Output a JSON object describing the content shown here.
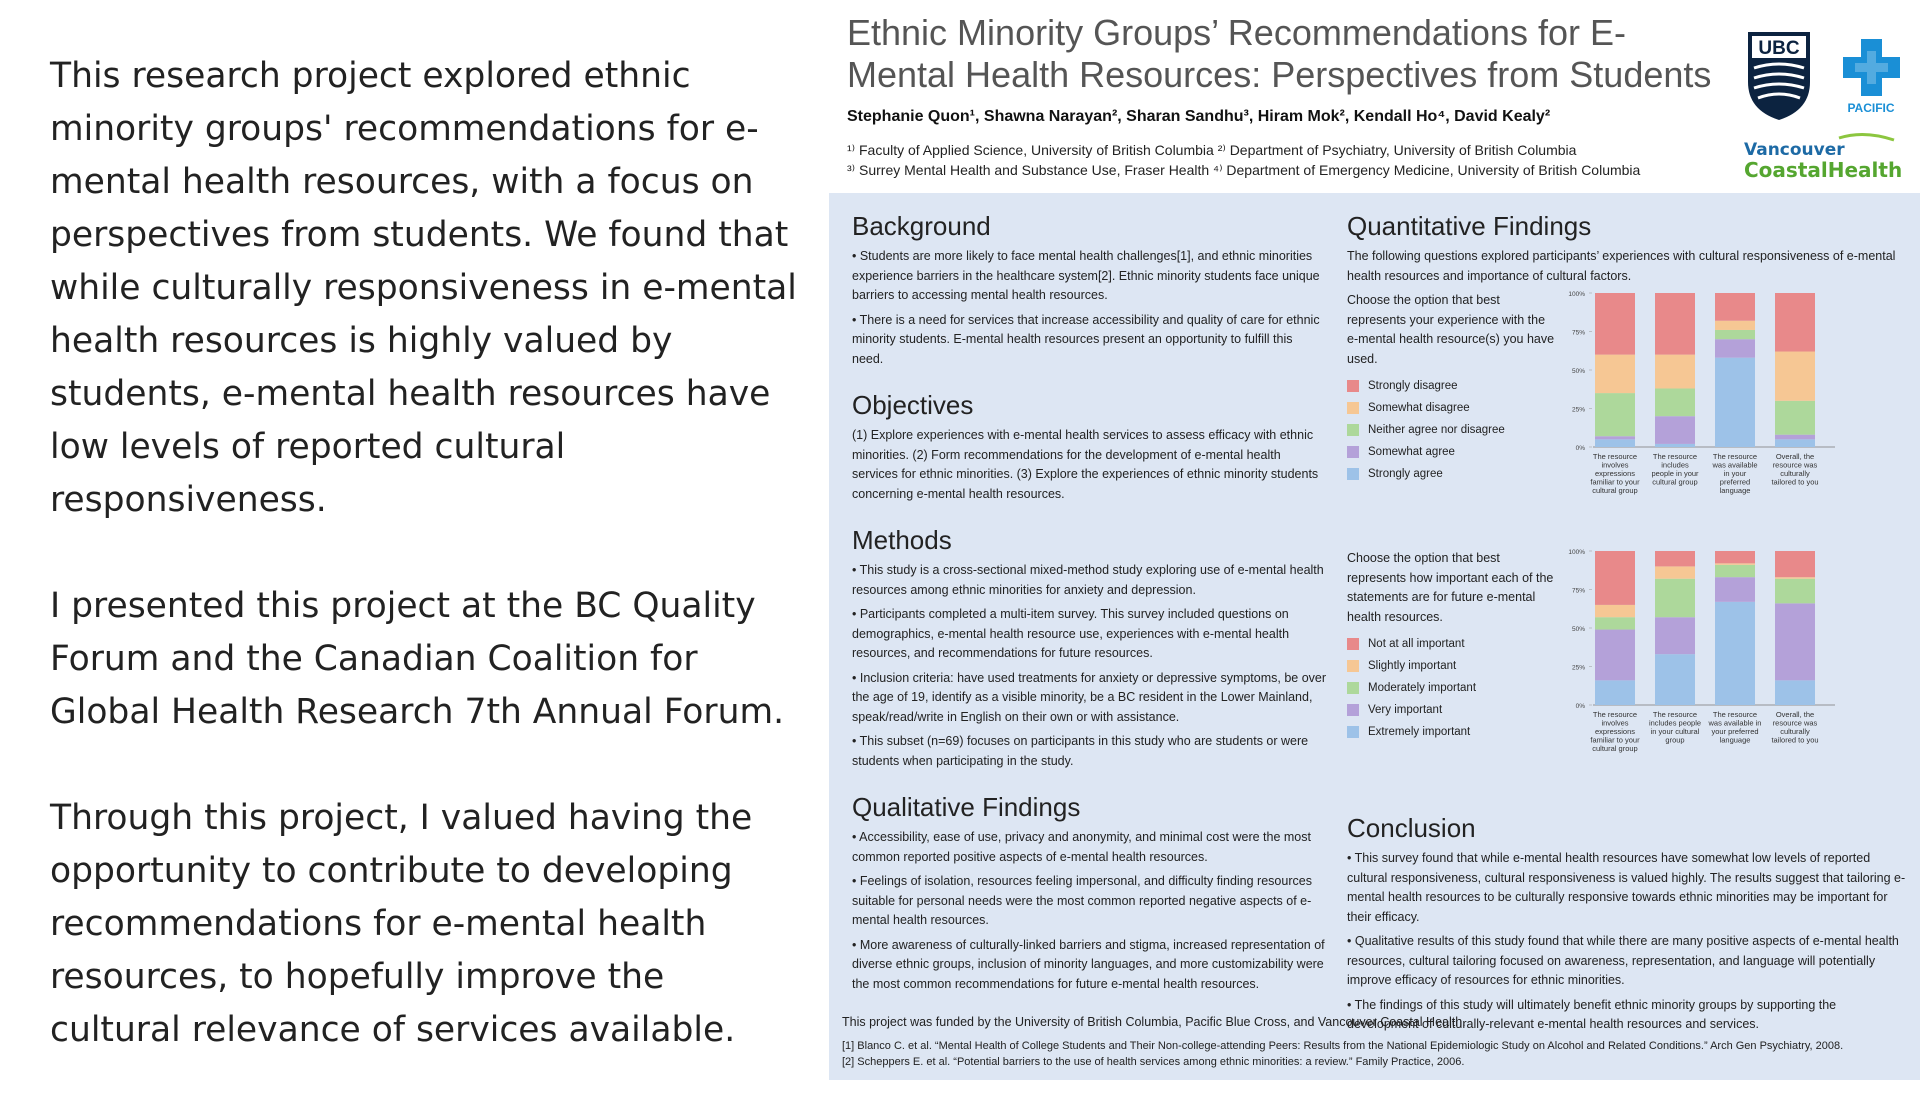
{
  "left_text": {
    "p1": "This research project explored ethnic minority groups' recommendations for e-mental health resources, with a focus on perspectives from students. We found that while culturally responsiveness in e-mental health resources is highly valued by students, e-mental health resources have low levels of reported cultural responsiveness.",
    "p2": "I presented this project at the BC Quality Forum and the Canadian Coalition for Global Health Research 7th Annual Forum.",
    "p3": "Through this project, I valued having the opportunity to contribute to developing recommendations for e-mental health resources, to hopefully improve the cultural relevance of services available."
  },
  "poster": {
    "title": "Ethnic Minority Groups’ Recommendations for E-Mental Health Resources: Perspectives from Students",
    "authors": "Stephanie Quon¹, Shawna Narayan², Sharan Sandhu³, Hiram Mok², Kendall Ho⁴, David Kealy²",
    "affil1": "¹⁾ Faculty of Applied Science, University of British Columbia ²⁾ Department of Psychiatry, University of British Columbia",
    "affil2": "³⁾ Surrey Mental Health and Substance Use, Fraser Health ⁴⁾ Department of Emergency Medicine, University of British Columbia",
    "logos": {
      "ubc": "UBC",
      "pacific": "PACIFIC",
      "vch_1": "Vancouver",
      "vch_2": "CoastalHealth"
    },
    "background": {
      "heading": "Background",
      "b1": "• Students are more likely to face mental health challenges[1], and ethnic minorities experience barriers in the healthcare system[2]. Ethnic minority students face unique barriers to accessing mental health resources.",
      "b2": "• There is a need for services that increase accessibility and quality of care for ethnic minority students. E-mental health resources present an opportunity to fulfill this need."
    },
    "objectives": {
      "heading": "Objectives",
      "text": "(1) Explore experiences with e-mental health services to assess efficacy with ethnic minorities. (2) Form recommendations for the development of e-mental health services for ethnic minorities. (3) Explore the experiences of ethnic minority students concerning e-mental health resources."
    },
    "methods": {
      "heading": "Methods",
      "m1": "• This study is a cross-sectional mixed-method study exploring use of e-mental health resources among ethnic minorities for anxiety and depression.",
      "m2": "• Participants completed a multi-item survey. This survey included questions on demographics, e-mental health resource use, experiences with e-mental health resources, and recommendations for future resources.",
      "m3": "• Inclusion criteria: have used treatments for anxiety or depressive symptoms, be over the age of 19, identify as a visible minority, be a BC resident in the Lower Mainland, speak/read/write in English on their own or with assistance.",
      "m4": "• This subset (n=69) focuses on participants in this study who are students or were students when participating in the study."
    },
    "qualitative": {
      "heading": "Qualitative Findings",
      "q1": "• Accessibility, ease of use, privacy and anonymity, and minimal cost were the most common reported positive aspects of e-mental health resources.",
      "q2": "• Feelings of isolation, resources feeling impersonal, and difficulty finding resources suitable for personal needs were the most common reported negative aspects of e-mental health resources.",
      "q3": "• More awareness of culturally-linked barriers and stigma, increased representation of diverse ethnic groups, inclusion of minority languages, and more customizability were the most common recommendations for future e-mental health resources."
    },
    "quantitative": {
      "heading": "Quantitative Findings",
      "intro": "The following questions explored participants’ experiences with cultural responsiveness of e-mental health resources and importance of cultural factors."
    },
    "conclusion": {
      "heading": "Conclusion",
      "c1": "• This survey found that while e-mental health resources have somewhat low levels of reported cultural responsiveness, cultural responsiveness is valued highly. The results suggest that tailoring e-mental health resources to be culturally responsive towards ethnic minorities may be important for their efficacy.",
      "c2": "• Qualitative results of this study found that while there are many positive aspects of e-mental health resources, cultural tailoring focused on awareness, representation, and language will potentially improve efficacy of resources for ethnic minorities.",
      "c3": "• The findings of this study will ultimately benefit ethnic minority groups by supporting the development of culturally-relevant e-mental health resources and services."
    },
    "funding": "This project was funded by the University of British Columbia, Pacific Blue Cross, and Vancouver Coastal Health.",
    "ref1": "[1] Blanco C. et al. “Mental Health of College Students and Their Non-college-attending Peers: Results from the National Epidemiologic Study on Alcohol and Related Conditions.” Arch Gen Psychiatry, 2008.",
    "ref2": "[2] Scheppers E. et al. “Potential barriers to the use of health services among ethnic minorities: a review.” Family Practice, 2006."
  },
  "colors": [
    "#e8898a",
    "#f6c794",
    "#add89b",
    "#b4a1d9",
    "#9dc2e8"
  ],
  "chart_data": [
    {
      "type": "bar",
      "stacked": true,
      "question": "Choose the option that best represents your experience with the e-mental health resource(s) you have used.",
      "categories": [
        [
          "The resource",
          "involves",
          "expressions",
          "familiar to your",
          "cultural group"
        ],
        [
          "The resource",
          "includes",
          "people in your",
          "cultural group"
        ],
        [
          "The resource",
          "was available",
          "in your",
          "preferred",
          "language"
        ],
        [
          "Overall, the",
          "resource was",
          "culturally",
          "tailored to you"
        ]
      ],
      "series": [
        {
          "name": "Strongly agree",
          "values": [
            5,
            2,
            58,
            5
          ]
        },
        {
          "name": "Somewhat agree",
          "values": [
            2,
            18,
            12,
            3
          ]
        },
        {
          "name": "Neither agree nor disagree",
          "values": [
            28,
            18,
            6,
            22
          ]
        },
        {
          "name": "Somewhat disagree",
          "values": [
            25,
            22,
            6,
            32
          ]
        },
        {
          "name": "Strongly disagree",
          "values": [
            40,
            40,
            18,
            38
          ]
        }
      ],
      "yticks": [
        "0%",
        "25%",
        "50%",
        "75%",
        "100%"
      ],
      "ylim": [
        0,
        100
      ]
    },
    {
      "type": "bar",
      "stacked": true,
      "question": "Choose the option that best represents how important each of the statements are for future e-mental health resources.",
      "categories": [
        [
          "The resource",
          "involves",
          "expressions",
          "familiar to your",
          "cultural group"
        ],
        [
          "The resource",
          "includes people",
          "in your cultural",
          "group"
        ],
        [
          "The resource",
          "was available in",
          "your preferred",
          "language"
        ],
        [
          "Overall, the",
          "resource was",
          "culturally",
          "tailored to you"
        ]
      ],
      "series": [
        {
          "name": "Extremely important",
          "values": [
            16,
            33,
            67,
            16
          ]
        },
        {
          "name": "Very important",
          "values": [
            33,
            24,
            16,
            50
          ]
        },
        {
          "name": "Moderately important",
          "values": [
            8,
            25,
            8,
            16
          ]
        },
        {
          "name": "Slightly important",
          "values": [
            8,
            8,
            1,
            1
          ]
        },
        {
          "name": "Not at all important",
          "values": [
            35,
            10,
            8,
            17
          ]
        }
      ],
      "yticks": [
        "0%",
        "25%",
        "50%",
        "75%",
        "100%"
      ],
      "ylim": [
        0,
        100
      ]
    }
  ]
}
